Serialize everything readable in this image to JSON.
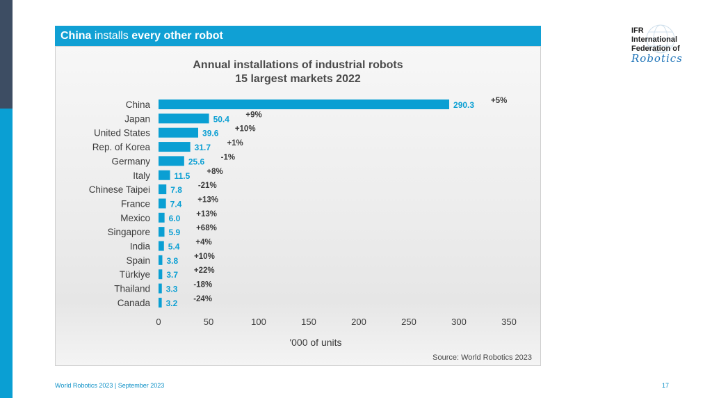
{
  "header": {
    "part1": "China",
    "part2": " installs ",
    "part3": "every other robot"
  },
  "logo": {
    "line1": "IFR",
    "line2": "International",
    "line3": "Federation of",
    "line4": "Robotics",
    "icon": "globe-icon"
  },
  "footer": {
    "left": "World Robotics 2023  | September 2023",
    "page": "17"
  },
  "colors": {
    "accent": "#10a0d4",
    "bar": "#0a9fd3",
    "dark": "#3d4d63"
  },
  "chart_data": {
    "type": "bar",
    "orientation": "horizontal",
    "title": "Annual installations  of industrial robots",
    "subtitle": "15 largest markets 2022",
    "xlabel": "'000 of units",
    "ylabel": "",
    "xlim": [
      0,
      350
    ],
    "xticks": [
      0,
      50,
      100,
      150,
      200,
      250,
      300,
      350
    ],
    "grid": false,
    "source": "Source: World Robotics 2023",
    "categories": [
      "China",
      "Japan",
      "United States",
      "Rep. of Korea",
      "Germany",
      "Italy",
      "Chinese Taipei",
      "France",
      "Mexico",
      "Singapore",
      "India",
      "Spain",
      "Türkiye",
      "Thailand",
      "Canada"
    ],
    "values": [
      290.3,
      50.4,
      39.6,
      31.7,
      25.6,
      11.5,
      7.8,
      7.4,
      6.0,
      5.9,
      5.4,
      3.8,
      3.7,
      3.3,
      3.2
    ],
    "value_labels": [
      "290.3",
      "50.4",
      "39.6",
      "31.7",
      "25.6",
      "11.5",
      "7.8",
      "7.4",
      "6.0",
      "5.9",
      "5.4",
      "3.8",
      "3.7",
      "3.3",
      "3.2"
    ],
    "growth_labels": [
      "+5%",
      "+9%",
      "+10%",
      "+1%",
      "-1%",
      "+8%",
      "-21%",
      "+13%",
      "+13%",
      "+68%",
      "+4%",
      "+10%",
      "+22%",
      "-18%",
      "-24%"
    ]
  }
}
